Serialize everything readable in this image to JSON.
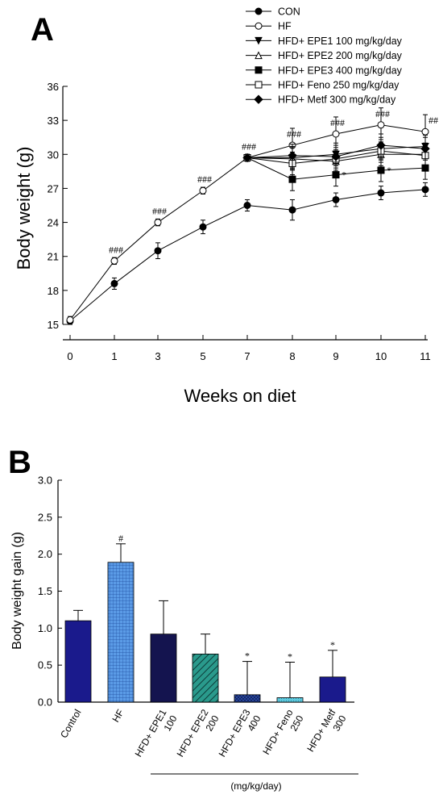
{
  "panel_a": {
    "letter": "A",
    "chart_data": {
      "type": "line",
      "xlabel": "Weeks on diet",
      "ylabel": "Body weight (g)",
      "x_ticks": [
        0,
        1,
        3,
        5,
        7,
        8,
        9,
        10,
        11
      ],
      "y_ticks": [
        15,
        18,
        21,
        24,
        27,
        30,
        33,
        36
      ],
      "ylim": [
        15,
        36
      ],
      "series": [
        {
          "name": "CON",
          "marker": "filled-circle",
          "x": [
            0,
            1,
            3,
            5,
            7,
            8,
            9,
            10,
            11
          ],
          "values": [
            15.3,
            18.6,
            21.5,
            23.6,
            25.5,
            25.1,
            26.0,
            26.6,
            26.9
          ],
          "errors": [
            0.3,
            0.5,
            0.7,
            0.6,
            0.5,
            0.9,
            0.6,
            0.6,
            0.6
          ]
        },
        {
          "name": "HF",
          "marker": "open-circle",
          "x": [
            0,
            1,
            3,
            5,
            7,
            8,
            9,
            10,
            11
          ],
          "values": [
            15.4,
            20.6,
            24.0,
            26.8,
            29.7,
            30.8,
            31.8,
            32.6,
            32.0
          ],
          "errors": [
            0.3,
            0.3,
            0.3,
            0.3,
            0.3,
            1.5,
            1.5,
            1.5,
            1.5
          ]
        },
        {
          "name": "HFD+ EPE1 100 mg/kg/day",
          "marker": "filled-triangle-down",
          "x": [
            7,
            8,
            9,
            10,
            11
          ],
          "values": [
            29.7,
            29.7,
            30.0,
            30.5,
            30.7
          ],
          "errors": [
            0.3,
            1.0,
            1.0,
            1.0,
            1.0
          ]
        },
        {
          "name": "HFD+ EPE2 200 mg/kg/day",
          "marker": "open-triangle-up",
          "x": [
            7,
            8,
            9,
            10,
            11
          ],
          "values": [
            29.7,
            29.6,
            29.4,
            30.0,
            30.0
          ],
          "errors": [
            0.3,
            1.0,
            1.0,
            1.0,
            1.0
          ]
        },
        {
          "name": "HFD+ EPE3 400 mg/kg/day",
          "marker": "filled-square",
          "x": [
            7,
            8,
            9,
            10,
            11
          ],
          "values": [
            29.7,
            27.8,
            28.2,
            28.6,
            28.8
          ],
          "errors": [
            0.3,
            1.0,
            1.0,
            1.0,
            1.0
          ]
        },
        {
          "name": "HFD+ Feno 250 mg/kg/day",
          "marker": "open-square",
          "x": [
            7,
            8,
            9,
            10,
            11
          ],
          "values": [
            29.7,
            29.2,
            29.6,
            30.3,
            29.9
          ],
          "errors": [
            0.3,
            1.0,
            1.0,
            1.0,
            1.0
          ]
        },
        {
          "name": "HFD+ Metf 300 mg/kg/day",
          "marker": "filled-diamond",
          "x": [
            7,
            8,
            9,
            10,
            11
          ],
          "values": [
            29.7,
            29.9,
            29.8,
            30.8,
            30.5
          ],
          "errors": [
            0.3,
            1.0,
            1.0,
            1.0,
            1.0
          ]
        }
      ],
      "annotations": [
        {
          "text": "###",
          "x": 1,
          "y": 20.6
        },
        {
          "text": "###",
          "x": 3,
          "y": 24.0
        },
        {
          "text": "###",
          "x": 5,
          "y": 26.8
        },
        {
          "text": "###",
          "x": 7,
          "y": 29.7
        },
        {
          "text": "###",
          "x": 8,
          "y": 30.8
        },
        {
          "text": "###",
          "x": 9,
          "y": 31.8
        },
        {
          "text": "###",
          "x": 10,
          "y": 32.6
        },
        {
          "text": "##",
          "x": 11,
          "y": 32.0
        },
        {
          "text": "*",
          "x": 9,
          "y": 28.2
        },
        {
          "text": "*",
          "x": 10,
          "y": 28.6
        }
      ],
      "legend_placement": "top-right"
    }
  },
  "panel_b": {
    "letter": "B",
    "chart_data": {
      "type": "bar",
      "ylabel": "Body weight gain (g)",
      "ylim": [
        0,
        3.0
      ],
      "y_ticks": [
        "0.0",
        "0.5",
        "1.0",
        "1.5",
        "2.0",
        "2.5",
        "3.0"
      ],
      "categories": [
        [
          "Control"
        ],
        [
          "HF"
        ],
        [
          "HFD+ EPE1",
          "100"
        ],
        [
          "HFD+ EPE2",
          "200"
        ],
        [
          "HFD+ EPE3",
          "400"
        ],
        [
          "HFD+ Feno",
          "250"
        ],
        [
          "HFD+ Metf",
          "300"
        ]
      ],
      "values": [
        1.1,
        1.89,
        0.92,
        0.65,
        0.1,
        0.06,
        0.34
      ],
      "errors": [
        0.14,
        0.25,
        0.45,
        0.27,
        0.45,
        0.48,
        0.36
      ],
      "significance": [
        "",
        "#",
        "",
        "",
        "*",
        "*",
        "*"
      ],
      "bar_colors": [
        "#1a1a8c",
        "#4c8fe0",
        "#14144f",
        "#1f8a7e",
        "#1e3a8f",
        "#4ec0d8",
        "#1a1a8c"
      ],
      "bar_patterns": [
        "solid",
        "grid",
        "solid",
        "diagonal",
        "crosshatch",
        "dots",
        "solid"
      ],
      "group_label": "(mg/kg/day)"
    }
  }
}
